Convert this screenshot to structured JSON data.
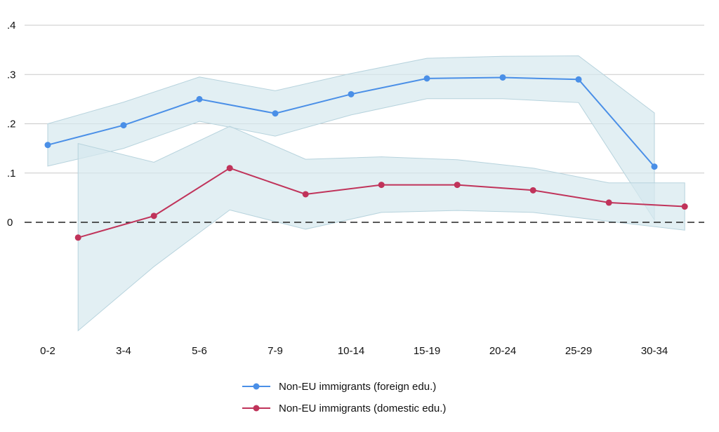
{
  "chart_data": {
    "type": "line",
    "title": "",
    "xlabel": "",
    "ylabel": "",
    "categories": [
      "0-2",
      "3-4",
      "5-6",
      "7-9",
      "10-14",
      "15-19",
      "20-24",
      "25-29",
      "30-34"
    ],
    "ylim": [
      -0.22,
      0.4
    ],
    "yticks": [
      {
        "value": 0.4,
        "label": ".4"
      },
      {
        "value": 0.3,
        "label": ".3"
      },
      {
        "value": 0.2,
        "label": ".2"
      },
      {
        "value": 0.1,
        "label": ".1"
      },
      {
        "value": 0.0,
        "label": "0"
      }
    ],
    "grid": true,
    "reference_line": {
      "value": 0,
      "style": "dashed"
    },
    "legend_position": "bottom-center",
    "series": [
      {
        "name": "Non-EU immigrants (foreign edu.)",
        "color": "#4a8fe7",
        "points": [
          {
            "x": "0-2",
            "y": 0.157,
            "lower": 0.114,
            "upper": 0.2
          },
          {
            "x": "3-4",
            "y": 0.197,
            "lower": 0.15,
            "upper": 0.244
          },
          {
            "x": "5-6",
            "y": 0.25,
            "lower": 0.205,
            "upper": 0.295
          },
          {
            "x": "7-9",
            "y": 0.221,
            "lower": 0.175,
            "upper": 0.267
          },
          {
            "x": "10-14",
            "y": 0.26,
            "lower": 0.218,
            "upper": 0.302
          },
          {
            "x": "15-19",
            "y": 0.292,
            "lower": 0.251,
            "upper": 0.333
          },
          {
            "x": "20-24",
            "y": 0.294,
            "lower": 0.251,
            "upper": 0.337
          },
          {
            "x": "25-29",
            "y": 0.29,
            "lower": 0.243,
            "upper": 0.338
          },
          {
            "x": "30-34",
            "y": 0.113,
            "lower": 0.005,
            "upper": 0.222
          }
        ]
      },
      {
        "name": "Non-EU immigrants (domestic edu.)",
        "color": "#c0335a",
        "points": [
          {
            "x": "0-2",
            "y": -0.031,
            "lower": -0.22,
            "upper": 0.16
          },
          {
            "x": "3-4",
            "y": 0.013,
            "lower": -0.09,
            "upper": 0.122
          },
          {
            "x": "5-6",
            "y": 0.11,
            "lower": 0.025,
            "upper": 0.195
          },
          {
            "x": "7-9",
            "y": 0.057,
            "lower": -0.014,
            "upper": 0.128
          },
          {
            "x": "10-14",
            "y": 0.076,
            "lower": 0.02,
            "upper": 0.133
          },
          {
            "x": "15-19",
            "y": 0.076,
            "lower": 0.024,
            "upper": 0.127
          },
          {
            "x": "20-24",
            "y": 0.065,
            "lower": 0.02,
            "upper": 0.11
          },
          {
            "x": "25-29",
            "y": 0.04,
            "lower": 0.002,
            "upper": 0.08
          },
          {
            "x": "30-34",
            "y": 0.032,
            "lower": -0.016,
            "upper": 0.08
          }
        ]
      }
    ],
    "band_color": "#d6e8ee",
    "band_edge_color": "#b7d3dd",
    "grid_color": "#c9c9c9"
  }
}
